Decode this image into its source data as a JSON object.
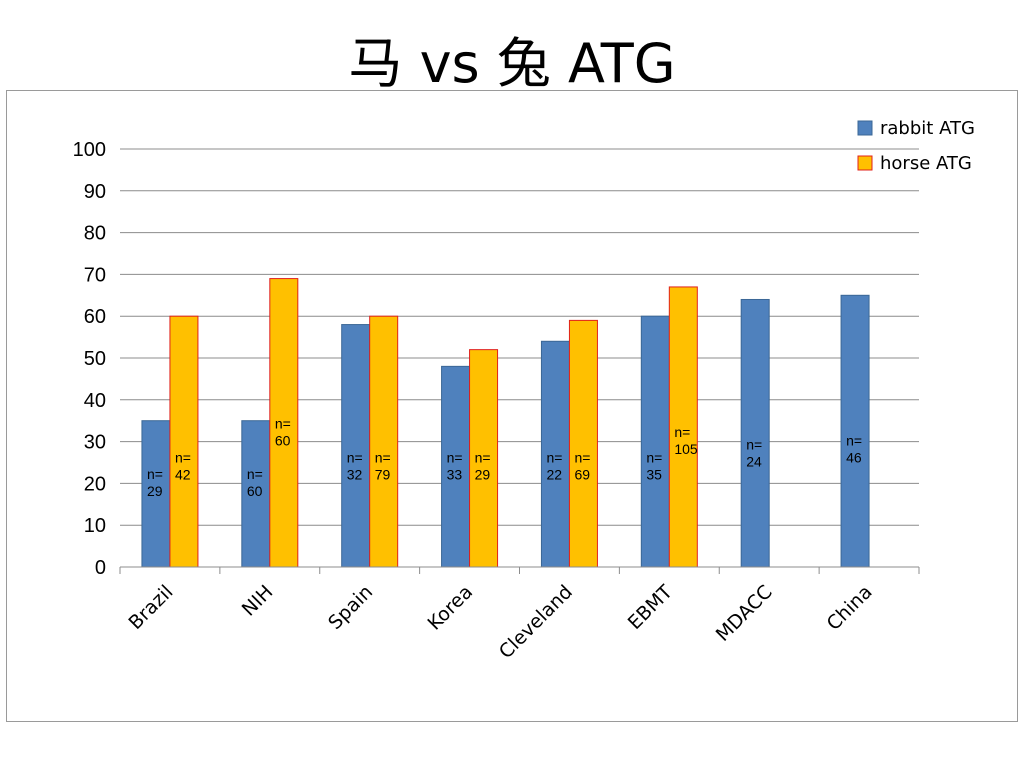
{
  "slide": {
    "title": "马 vs 兔 ATG"
  },
  "chart_data": {
    "type": "bar",
    "categories": [
      "Brazil",
      "NIH",
      "Spain",
      "Korea",
      "Cleveland",
      "EBMT",
      "MDACC",
      "China"
    ],
    "series": [
      {
        "name": "rabbit ATG",
        "color": "#4F81BD",
        "values": [
          35,
          35,
          58,
          48,
          54,
          60,
          64,
          65
        ],
        "n_labels": [
          "n=\n29",
          "n=\n60",
          "n=\n32",
          "n=\n33",
          "n=\n22",
          "n=\n35",
          "n=\n24",
          "n=\n46"
        ]
      },
      {
        "name": "horse ATG",
        "color": "#FFC000",
        "border_color": "#E0201B",
        "values": [
          60,
          69,
          60,
          52,
          59,
          67,
          null,
          null
        ],
        "n_labels": [
          "n=\n42",
          "n=\n60",
          "n=\n79",
          "n=\n29",
          "n=\n69",
          "n=\n105",
          null,
          null
        ]
      }
    ],
    "y_ticks": [
      0,
      10,
      20,
      30,
      40,
      50,
      60,
      70,
      80,
      90,
      100
    ],
    "ylim": [
      0,
      100
    ],
    "grid": true,
    "legend_position": "top-right"
  }
}
